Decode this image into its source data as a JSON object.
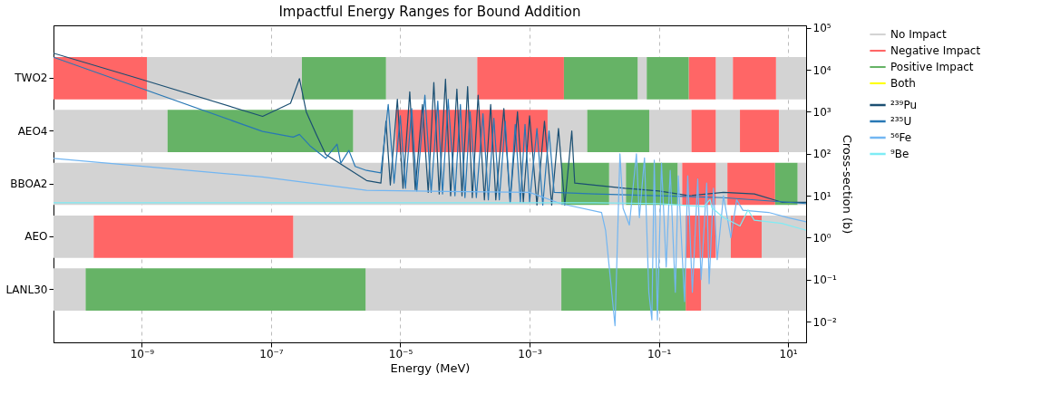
{
  "chart_data": [
    {
      "type": "bar",
      "orientation": "horizontal",
      "title": "Impactful Energy Ranges for Bound Addition",
      "xlabel": "Energy (MeV)",
      "categories": [
        "TWO2",
        "AEO4",
        "BBOA2",
        "AEO",
        "LANL30"
      ],
      "log": "x",
      "grid": "x",
      "legend": "right",
      "xlim": [
        4.3e-11,
        19
      ],
      "xticks": [
        {
          "value": 1e-09,
          "label": "10⁻⁹"
        },
        {
          "value": 1e-07,
          "label": "10⁻⁷"
        },
        {
          "value": 1e-05,
          "label": "10⁻⁵"
        },
        {
          "value": 0.001,
          "label": "10⁻³"
        },
        {
          "value": 0.1,
          "label": "10⁻¹"
        },
        {
          "value": 10,
          "label": "10¹"
        }
      ],
      "series": [
        {
          "name": "No Impact",
          "color": "#d3d3d3",
          "base": [
            1.2e-09,
            4.3e-11,
            4.3e-11,
            4.3e-11,
            4.3e-11
          ],
          "values": [
            2.988e-07,
            2.457e-09,
            0.0031,
            1.37e-10,
            9.2e-11
          ]
        },
        {
          "color": "#d3d3d3",
          "base": [
            6e-06,
            1.86e-06,
            0.017,
            2.2e-07,
            2.9e-06
          ],
          "values": [
            0.000149,
            6.64e-06,
            0.014,
            0.26,
            0.0030971
          ]
        },
        {
          "color": "#d3d3d3",
          "base": [
            0.047,
            0.0019,
            0.195,
            0.76,
            0.45
          ],
          "values": [
            0.018,
            0.0059,
            0.035,
            0.54,
            18.55
          ]
        },
        {
          "color": "#d3d3d3",
          "base": [
            0.76,
            0.071,
            0.76,
            3.9,
            null
          ],
          "values": [
            0.64,
            0.249,
            0.39,
            15.1,
            null
          ]
        },
        {
          "color": "#d3d3d3",
          "base": [
            6.5,
            0.76,
            14,
            null,
            null
          ],
          "values": [
            12.5,
            1.04,
            5,
            null,
            null
          ]
        },
        {
          "color": "#d3d3d3",
          "base": [
            null,
            7.2,
            null,
            null,
            null
          ],
          "values": [
            null,
            11.8,
            null,
            null,
            null
          ]
        },
        {
          "name": "Negative Impact",
          "color": "#ff6666",
          "base": [
            4.3e-11,
            8.5e-06,
            0.23,
            1.8e-10,
            0.26
          ],
          "values": [
            1.157e-09,
            0.0018915,
            0.53,
            2.198e-07,
            0.19
          ]
        },
        {
          "color": "#ff6666",
          "base": [
            0.000155,
            0.32,
            1.15,
            0.26,
            null
          ],
          "values": [
            0.003245,
            0.44,
            5.15,
            0.5,
            null
          ]
        },
        {
          "color": "#ff6666",
          "base": [
            0.29,
            1.8,
            null,
            1.3,
            null
          ],
          "values": [
            0.47,
            5.4,
            null,
            2.6,
            null
          ]
        },
        {
          "color": "#ff6666",
          "base": [
            1.4,
            null,
            null,
            null,
            null
          ],
          "values": [
            5.1,
            null,
            null,
            null,
            null
          ]
        },
        {
          "name": "Positive Impact",
          "color": "#66b366",
          "base": [
            3e-07,
            2.5e-09,
            0.0031,
            null,
            1.35e-10
          ],
          "values": [
            5.7e-06,
            1.8575e-06,
            0.0139,
            null,
            2.89987e-06
          ]
        },
        {
          "color": "#66b366",
          "base": [
            0.0034,
            0.0078,
            0.031,
            null,
            0.0031
          ],
          "values": [
            0.0436,
            0.0632,
            0.164,
            null,
            0.2569
          ]
        },
        {
          "color": "#66b366",
          "base": [
            0.065,
            null,
            6.3,
            null,
            null
          ],
          "values": [
            0.225,
            null,
            7.7,
            null,
            null
          ]
        },
        {
          "name": "Both",
          "color": "#ffff00",
          "values": [
            null,
            null,
            null,
            null,
            null
          ]
        }
      ]
    },
    {
      "type": "line",
      "ylabel": "Cross-section (b)",
      "log": "xy",
      "legend": "right",
      "tick_labels": "y",
      "xlim": [
        4.3e-11,
        19
      ],
      "ylim": [
        0.0032,
        115000
      ],
      "yticks": [
        {
          "value": 0.01,
          "label": "10⁻²"
        },
        {
          "value": 0.1,
          "label": "10⁻¹"
        },
        {
          "value": 1,
          "label": "10⁰"
        },
        {
          "value": 10,
          "label": "10¹"
        },
        {
          "value": 100,
          "label": "10²"
        },
        {
          "value": 1000,
          "label": "10³"
        },
        {
          "value": 10000,
          "label": "10⁴"
        },
        {
          "value": 100000,
          "label": "10⁵"
        }
      ],
      "series": [
        {
          "name": "²³⁹Pu",
          "color": "#1b4f72",
          "x": [
            4.3e-11,
            1e-09,
            7.4e-08,
            2e-07,
            2.75e-07,
            3.5e-07,
            5e-07,
            7e-07,
            3e-06,
            5e-06,
            6e-06,
            7e-06,
            9e-06,
            1.1e-05,
            1.4e-05,
            1.7e-05,
            2.2e-05,
            2.7e-05,
            3.3e-05,
            4e-05,
            5e-05,
            6e-05,
            7.5e-05,
            9e-05,
            0.00011,
            0.00013,
            0.00016,
            0.0002,
            0.00025,
            0.0003,
            0.0004,
            0.0005,
            0.00065,
            0.0008,
            0.001,
            0.0013,
            0.0017,
            0.0022,
            0.0028,
            0.0035,
            0.0045,
            0.005,
            0.01,
            0.03,
            0.1,
            0.3,
            1,
            3,
            8,
            19
          ],
          "values": [
            25000,
            5900,
            780,
            1600,
            6200,
            1000,
            290,
            96,
            23,
            20,
            600,
            18,
            2000,
            15,
            3000,
            14,
            1500,
            12,
            5000,
            11,
            6000,
            10,
            3500,
            10,
            4000,
            9,
            2500,
            8,
            1500,
            8,
            1200,
            7,
            1000,
            7,
            800,
            6,
            600,
            6,
            400,
            6,
            350,
            20,
            18,
            15,
            13,
            10,
            12,
            11,
            7,
            7
          ]
        },
        {
          "name": "²³⁵U",
          "color": "#2878b5",
          "x": [
            4.3e-11,
            7.4e-08,
            2.2e-07,
            2.75e-07,
            4e-07,
            7e-07,
            1.05e-06,
            1.2e-06,
            1.6e-06,
            2e-06,
            3e-06,
            5e-06,
            6.5e-06,
            8e-06,
            1e-05,
            1.2e-05,
            1.5e-05,
            1.8e-05,
            2.4e-05,
            3e-05,
            3.8e-05,
            4.5e-05,
            5.5e-05,
            7e-05,
            8.5e-05,
            0.0001,
            0.00012,
            0.00015,
            0.00019,
            0.00023,
            0.00028,
            0.00034,
            0.00042,
            0.0005,
            0.0006,
            0.00072,
            0.00085,
            0.001,
            0.0013,
            0.0016,
            0.002,
            0.0024,
            0.01,
            0.1,
            1,
            19
          ],
          "values": [
            20000,
            340,
            250,
            290,
            155,
            78,
            170,
            60,
            120,
            50,
            40,
            35,
            1500,
            20,
            800,
            15,
            1200,
            13,
            2500,
            12,
            1800,
            11,
            2000,
            10,
            1500,
            9,
            1000,
            9,
            900,
            8,
            700,
            8,
            600,
            7,
            500,
            7,
            500,
            7,
            400,
            6,
            350,
            12,
            11,
            10,
            9,
            6.5
          ]
        },
        {
          "name": "⁵⁶Fe",
          "color": "#72b6f2",
          "x": [
            4.3e-11,
            7.4e-08,
            3e-06,
            0.0001,
            0.001,
            0.003,
            0.013,
            0.015,
            0.021,
            0.025,
            0.028,
            0.035,
            0.045,
            0.05,
            0.06,
            0.07,
            0.078,
            0.085,
            0.095,
            0.11,
            0.13,
            0.15,
            0.18,
            0.2,
            0.25,
            0.28,
            0.33,
            0.4,
            0.45,
            0.55,
            0.6,
            0.7,
            0.8,
            1.0,
            1.3,
            1.6,
            2,
            5,
            10,
            19
          ],
          "values": [
            78,
            28,
            13.5,
            12.5,
            12,
            6.5,
            4,
            1.5,
            0.008,
            100,
            5,
            2,
            100,
            3,
            80,
            0.05,
            0.011,
            70,
            0.011,
            60,
            0.2,
            40,
            0.05,
            30,
            0.03,
            30,
            0.05,
            25,
            0.1,
            20,
            0.08,
            15,
            0.3,
            10,
            1,
            8,
            4.5,
            4,
            3,
            2.4
          ]
        },
        {
          "name": "⁹Be",
          "color": "#7eecf5",
          "x": [
            4.3e-11,
            0.01,
            0.1,
            0.5,
            0.62,
            0.66,
            1.0,
            1.8,
            2.4,
            3,
            8,
            19
          ],
          "values": [
            6.8,
            6.8,
            6.5,
            5.5,
            8.2,
            5.2,
            3,
            1.9,
            4.6,
            2.6,
            2.2,
            1.5
          ]
        }
      ]
    }
  ]
}
